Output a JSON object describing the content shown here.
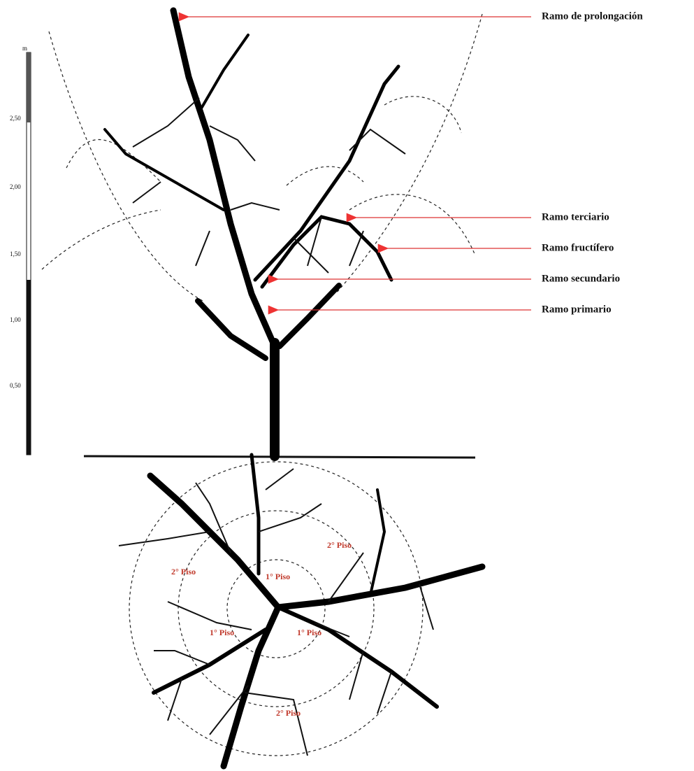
{
  "scale": {
    "unit": "m",
    "labels": [
      "2,50",
      "2,00",
      "1,50",
      "1,00",
      "0,50"
    ]
  },
  "labels": [
    "Ramo de prolongación",
    "Ramo terciario",
    "Ramo fructífero",
    "Ramo secundario",
    "Ramo primario"
  ],
  "plan_labels": [
    "2° Piso",
    "2° Piso",
    "1° Piso",
    "1° Piso",
    "1° Piso",
    "2° Piso"
  ]
}
